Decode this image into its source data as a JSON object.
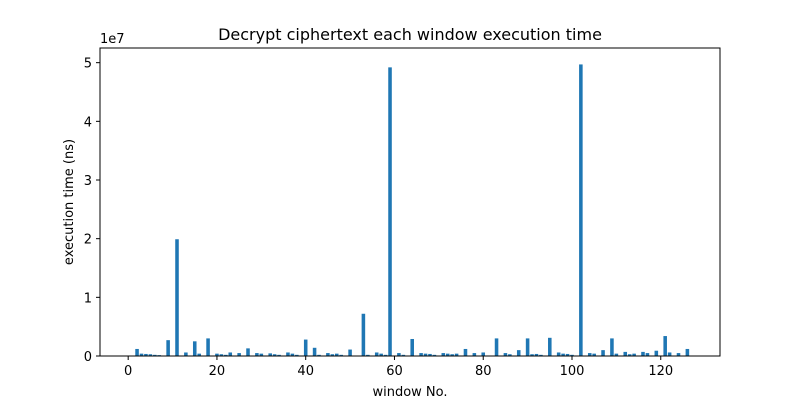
{
  "chart_data": {
    "type": "bar",
    "title": "Decrypt ciphertext each window execution time",
    "xlabel": "window No.",
    "ylabel": "execution time (ns)",
    "y_offset_label": "1e7",
    "y_scale": 10000000,
    "xlim": [
      -6.35,
      133.35
    ],
    "ylim": [
      0,
      52500000
    ],
    "xticks": [
      0,
      20,
      40,
      60,
      80,
      100,
      120
    ],
    "yticks": [
      0,
      1,
      2,
      3,
      4,
      5
    ],
    "grid": false,
    "legend": "none",
    "bar_color": "#1f77b4",
    "bar_width": 0.8,
    "x": [
      0,
      1,
      2,
      3,
      4,
      5,
      6,
      7,
      8,
      9,
      10,
      11,
      12,
      13,
      14,
      15,
      16,
      17,
      18,
      19,
      20,
      21,
      22,
      23,
      24,
      25,
      26,
      27,
      28,
      29,
      30,
      31,
      32,
      33,
      34,
      35,
      36,
      37,
      38,
      39,
      40,
      41,
      42,
      43,
      44,
      45,
      46,
      47,
      48,
      49,
      50,
      51,
      52,
      53,
      54,
      55,
      56,
      57,
      58,
      59,
      60,
      61,
      62,
      63,
      64,
      65,
      66,
      67,
      68,
      69,
      70,
      71,
      72,
      73,
      74,
      75,
      76,
      77,
      78,
      79,
      80,
      81,
      82,
      83,
      84,
      85,
      86,
      87,
      88,
      89,
      90,
      91,
      92,
      93,
      94,
      95,
      96,
      97,
      98,
      99,
      100,
      101,
      102,
      103,
      104,
      105,
      106,
      107,
      108,
      109,
      110,
      111,
      112,
      113,
      114,
      115,
      116,
      117,
      118,
      119,
      120,
      121,
      122,
      123,
      124,
      125,
      126,
      127
    ],
    "values": [
      0,
      0,
      1200000,
      400000,
      350000,
      300000,
      200000,
      150000,
      0,
      2700000,
      0,
      19900000,
      0,
      600000,
      0,
      2500000,
      400000,
      0,
      3000000,
      0,
      400000,
      300000,
      200000,
      600000,
      0,
      500000,
      0,
      1300000,
      0,
      500000,
      400000,
      0,
      450000,
      300000,
      200000,
      0,
      600000,
      400000,
      200000,
      0,
      2800000,
      0,
      1400000,
      200000,
      0,
      500000,
      300000,
      400000,
      200000,
      0,
      1100000,
      0,
      0,
      7200000,
      200000,
      0,
      600000,
      400000,
      200000,
      49200000,
      0,
      500000,
      200000,
      0,
      2900000,
      0,
      500000,
      400000,
      350000,
      200000,
      0,
      500000,
      400000,
      300000,
      400000,
      0,
      1200000,
      0,
      500000,
      0,
      600000,
      0,
      0,
      3000000,
      0,
      500000,
      300000,
      0,
      1000000,
      0,
      3000000,
      300000,
      350000,
      200000,
      0,
      3100000,
      0,
      600000,
      400000,
      350000,
      200000,
      0,
      49700000,
      0,
      500000,
      400000,
      0,
      1000000,
      0,
      3000000,
      400000,
      0,
      700000,
      300000,
      400000,
      0,
      700000,
      500000,
      0,
      900000,
      0,
      3400000,
      600000,
      0,
      500000,
      0,
      1200000,
      0
    ]
  }
}
